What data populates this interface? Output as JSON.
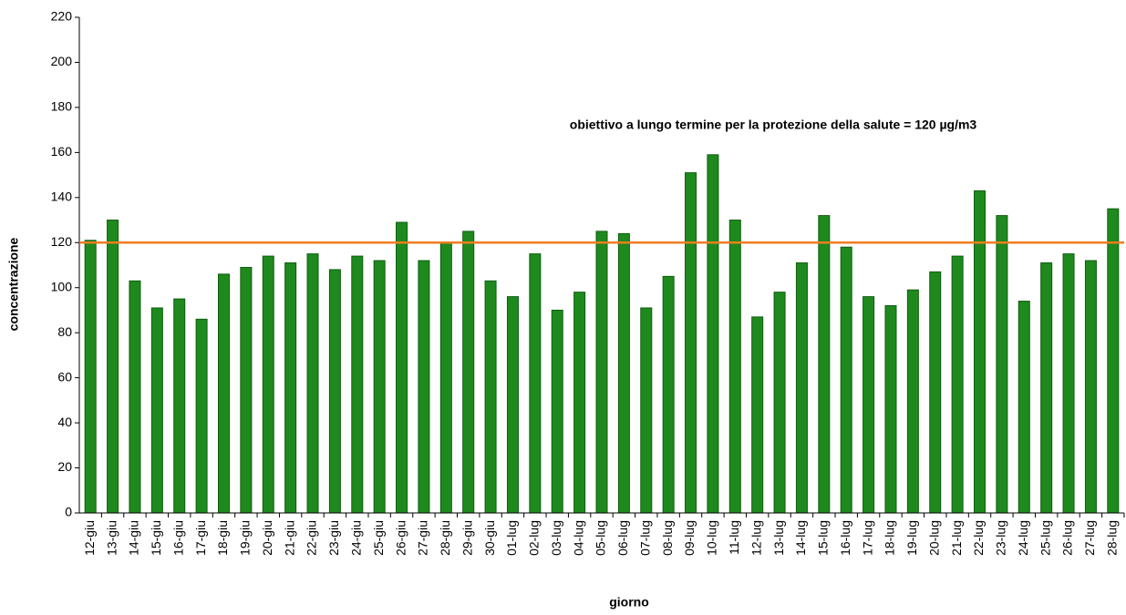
{
  "chart_data": {
    "type": "bar",
    "annotation": "obiettivo a lungo termine per la protezione della salute = 120 µg/m3",
    "x_label": "giorno",
    "y_label": "concentrazione",
    "categories": [
      "12-giu",
      "13-giu",
      "14-giu",
      "15-giu",
      "16-giu",
      "17-giu",
      "18-giu",
      "19-giu",
      "20-giu",
      "21-giu",
      "22-giu",
      "23-giu",
      "24-giu",
      "25-giu",
      "26-giu",
      "27-giu",
      "28-giu",
      "29-giu",
      "30-giu",
      "01-lug",
      "02-lug",
      "03-lug",
      "04-lug",
      "05-lug",
      "06-lug",
      "07-lug",
      "08-lug",
      "09-lug",
      "10-lug",
      "11-lug",
      "12-lug",
      "13-lug",
      "14-lug",
      "15-lug",
      "16-lug",
      "17-lug",
      "18-lug",
      "19-lug",
      "20-lug",
      "21-lug",
      "22-lug",
      "23-lug",
      "24-lug",
      "25-lug",
      "26-lug",
      "27-lug",
      "28-lug"
    ],
    "values": [
      121,
      130,
      103,
      91,
      95,
      86,
      106,
      109,
      114,
      111,
      115,
      108,
      114,
      112,
      129,
      112,
      120,
      125,
      103,
      96,
      115,
      90,
      98,
      125,
      124,
      91,
      105,
      151,
      159,
      130,
      87,
      98,
      111,
      132,
      118,
      96,
      92,
      99,
      107,
      114,
      143,
      132,
      94,
      111,
      115,
      112,
      135
    ],
    "color": "#1e8a1e",
    "threshold": 120,
    "threshold_color": "#f07d20",
    "ylim": [
      0,
      220
    ],
    "yticks": [
      0,
      20,
      40,
      60,
      80,
      100,
      120,
      140,
      160,
      180,
      200,
      220
    ]
  }
}
